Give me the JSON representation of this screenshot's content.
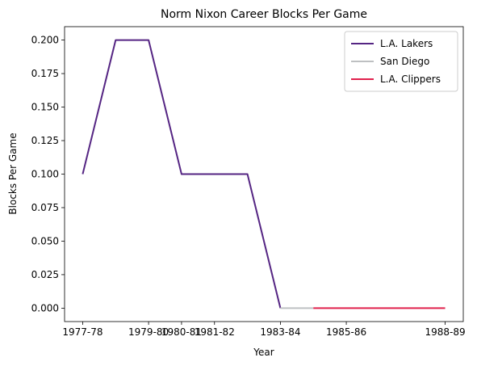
{
  "chart_data": {
    "type": "line",
    "title": "Norm Nixon Career Blocks Per Game",
    "xlabel": "Year",
    "ylabel": "Blocks Per Game",
    "x_tick_labels": [
      "1977-78",
      "1979-80",
      "1980-81",
      "1981-82",
      "1983-84",
      "1985-86",
      "1988-89"
    ],
    "y_ticks": [
      0.0,
      0.025,
      0.05,
      0.075,
      0.1,
      0.125,
      0.15,
      0.175,
      0.2
    ],
    "y_tick_labels": [
      "0.000",
      "0.025",
      "0.050",
      "0.075",
      "0.100",
      "0.125",
      "0.150",
      "0.175",
      "0.200"
    ],
    "ylim": [
      -0.01,
      0.21
    ],
    "grid": false,
    "legend_position": "top-right",
    "series": [
      {
        "name": "L.A. Lakers",
        "color": "#552583",
        "points": [
          {
            "x": "1977-78",
            "y": 0.1
          },
          {
            "x": "1978-79",
            "y": 0.2
          },
          {
            "x": "1979-80",
            "y": 0.2
          },
          {
            "x": "1980-81",
            "y": 0.1
          },
          {
            "x": "1981-82",
            "y": 0.1
          },
          {
            "x": "1982-83",
            "y": 0.1
          },
          {
            "x": "1983-84",
            "y": 0.0
          }
        ]
      },
      {
        "name": "San Diego",
        "color": "#BEC0C2",
        "points": [
          {
            "x": "1983-84",
            "y": 0.0
          },
          {
            "x": "1984-85",
            "y": 0.0
          }
        ]
      },
      {
        "name": "L.A. Clippers",
        "color": "#E0204C",
        "points": [
          {
            "x": "1984-85",
            "y": 0.0
          },
          {
            "x": "1985-86",
            "y": 0.0
          },
          {
            "x": "1988-89",
            "y": 0.0
          }
        ]
      }
    ]
  }
}
